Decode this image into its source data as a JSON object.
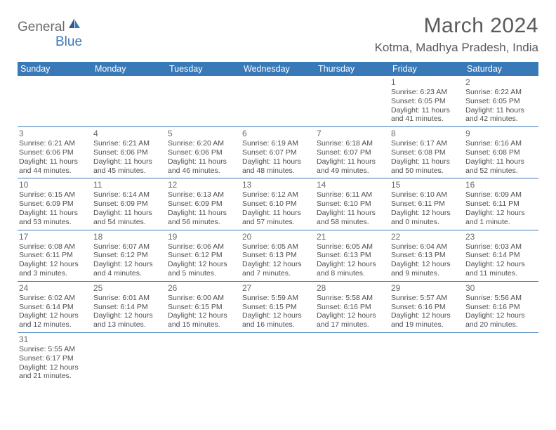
{
  "logo": {
    "text1": "General",
    "text2": "Blue"
  },
  "title": "March 2024",
  "location": "Kotma, Madhya Pradesh, India",
  "colors": {
    "header_bg": "#3a79b7",
    "header_text": "#ffffff",
    "border": "#3a79b7",
    "daynum": "#6b6b6b",
    "info": "#4f4f4f",
    "title": "#5a5a5a",
    "logo_gray": "#6b6b6b",
    "logo_blue": "#3a79b7",
    "background": "#ffffff"
  },
  "weekdays": [
    "Sunday",
    "Monday",
    "Tuesday",
    "Wednesday",
    "Thursday",
    "Friday",
    "Saturday"
  ],
  "weeks": [
    [
      null,
      null,
      null,
      null,
      null,
      {
        "d": "1",
        "sr": "6:23 AM",
        "ss": "6:05 PM",
        "dl": "11 hours and 41 minutes."
      },
      {
        "d": "2",
        "sr": "6:22 AM",
        "ss": "6:05 PM",
        "dl": "11 hours and 42 minutes."
      }
    ],
    [
      {
        "d": "3",
        "sr": "6:21 AM",
        "ss": "6:06 PM",
        "dl": "11 hours and 44 minutes."
      },
      {
        "d": "4",
        "sr": "6:21 AM",
        "ss": "6:06 PM",
        "dl": "11 hours and 45 minutes."
      },
      {
        "d": "5",
        "sr": "6:20 AM",
        "ss": "6:06 PM",
        "dl": "11 hours and 46 minutes."
      },
      {
        "d": "6",
        "sr": "6:19 AM",
        "ss": "6:07 PM",
        "dl": "11 hours and 48 minutes."
      },
      {
        "d": "7",
        "sr": "6:18 AM",
        "ss": "6:07 PM",
        "dl": "11 hours and 49 minutes."
      },
      {
        "d": "8",
        "sr": "6:17 AM",
        "ss": "6:08 PM",
        "dl": "11 hours and 50 minutes."
      },
      {
        "d": "9",
        "sr": "6:16 AM",
        "ss": "6:08 PM",
        "dl": "11 hours and 52 minutes."
      }
    ],
    [
      {
        "d": "10",
        "sr": "6:15 AM",
        "ss": "6:09 PM",
        "dl": "11 hours and 53 minutes."
      },
      {
        "d": "11",
        "sr": "6:14 AM",
        "ss": "6:09 PM",
        "dl": "11 hours and 54 minutes."
      },
      {
        "d": "12",
        "sr": "6:13 AM",
        "ss": "6:09 PM",
        "dl": "11 hours and 56 minutes."
      },
      {
        "d": "13",
        "sr": "6:12 AM",
        "ss": "6:10 PM",
        "dl": "11 hours and 57 minutes."
      },
      {
        "d": "14",
        "sr": "6:11 AM",
        "ss": "6:10 PM",
        "dl": "11 hours and 58 minutes."
      },
      {
        "d": "15",
        "sr": "6:10 AM",
        "ss": "6:11 PM",
        "dl": "12 hours and 0 minutes."
      },
      {
        "d": "16",
        "sr": "6:09 AM",
        "ss": "6:11 PM",
        "dl": "12 hours and 1 minute."
      }
    ],
    [
      {
        "d": "17",
        "sr": "6:08 AM",
        "ss": "6:11 PM",
        "dl": "12 hours and 3 minutes."
      },
      {
        "d": "18",
        "sr": "6:07 AM",
        "ss": "6:12 PM",
        "dl": "12 hours and 4 minutes."
      },
      {
        "d": "19",
        "sr": "6:06 AM",
        "ss": "6:12 PM",
        "dl": "12 hours and 5 minutes."
      },
      {
        "d": "20",
        "sr": "6:05 AM",
        "ss": "6:13 PM",
        "dl": "12 hours and 7 minutes."
      },
      {
        "d": "21",
        "sr": "6:05 AM",
        "ss": "6:13 PM",
        "dl": "12 hours and 8 minutes."
      },
      {
        "d": "22",
        "sr": "6:04 AM",
        "ss": "6:13 PM",
        "dl": "12 hours and 9 minutes."
      },
      {
        "d": "23",
        "sr": "6:03 AM",
        "ss": "6:14 PM",
        "dl": "12 hours and 11 minutes."
      }
    ],
    [
      {
        "d": "24",
        "sr": "6:02 AM",
        "ss": "6:14 PM",
        "dl": "12 hours and 12 minutes."
      },
      {
        "d": "25",
        "sr": "6:01 AM",
        "ss": "6:14 PM",
        "dl": "12 hours and 13 minutes."
      },
      {
        "d": "26",
        "sr": "6:00 AM",
        "ss": "6:15 PM",
        "dl": "12 hours and 15 minutes."
      },
      {
        "d": "27",
        "sr": "5:59 AM",
        "ss": "6:15 PM",
        "dl": "12 hours and 16 minutes."
      },
      {
        "d": "28",
        "sr": "5:58 AM",
        "ss": "6:16 PM",
        "dl": "12 hours and 17 minutes."
      },
      {
        "d": "29",
        "sr": "5:57 AM",
        "ss": "6:16 PM",
        "dl": "12 hours and 19 minutes."
      },
      {
        "d": "30",
        "sr": "5:56 AM",
        "ss": "6:16 PM",
        "dl": "12 hours and 20 minutes."
      }
    ],
    [
      {
        "d": "31",
        "sr": "5:55 AM",
        "ss": "6:17 PM",
        "dl": "12 hours and 21 minutes."
      },
      null,
      null,
      null,
      null,
      null,
      null
    ]
  ],
  "labels": {
    "sunrise": "Sunrise: ",
    "sunset": "Sunset: ",
    "daylight": "Daylight: "
  }
}
